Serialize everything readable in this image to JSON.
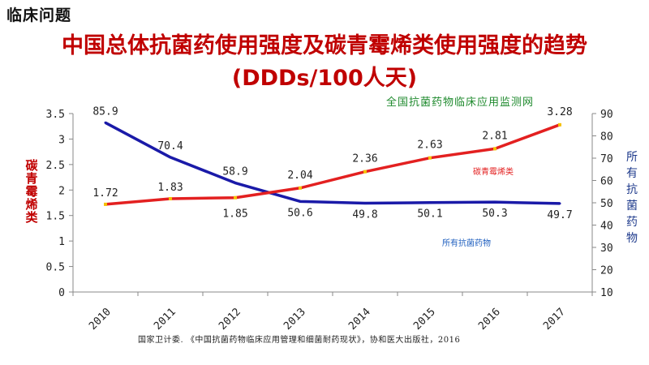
{
  "page": {
    "section_title": "临床问题",
    "title_line1": "中国总体抗菌药使用强度及碳青霉烯类使用强度的趋势",
    "title_line2": "(DDDs/100人天)",
    "source_label": "全国抗菌药物临床应用监测网",
    "reference": "国家卫计委. 《中国抗菌药物临床应用管理和细菌耐药现状》，协和医大出版社，2016"
  },
  "chart_data": {
    "type": "line",
    "categories": [
      "2010",
      "2011",
      "2012",
      "2013",
      "2014",
      "2015",
      "2016",
      "2017"
    ],
    "y_left": {
      "label": "碳青霉烯类",
      "range": [
        0,
        3.5
      ],
      "ticks": [
        "0",
        "0.5",
        "1",
        "1.5",
        "2",
        "2.5",
        "3",
        "3.5"
      ]
    },
    "y_right": {
      "label": "所有抗菌药物",
      "range": [
        10,
        90
      ],
      "ticks": [
        "10",
        "20",
        "30",
        "40",
        "50",
        "60",
        "70",
        "80",
        "90"
      ]
    },
    "grid": false,
    "series": [
      {
        "name": "碳青霉烯类",
        "axis": "left",
        "color": "#e32020",
        "values": [
          1.72,
          1.83,
          1.85,
          2.04,
          2.36,
          2.63,
          2.81,
          3.28
        ],
        "labels": [
          "1.72",
          "1.83",
          "1.85",
          "2.04",
          "2.36",
          "2.63",
          "2.81",
          "3.28"
        ]
      },
      {
        "name": "所有抗菌药物",
        "axis": "right",
        "color": "#1a1aa8",
        "values": [
          85.9,
          70.4,
          58.9,
          50.6,
          49.8,
          50.1,
          50.3,
          49.7
        ],
        "labels": [
          "85.9",
          "70.4",
          "58.9",
          "50.6",
          "49.8",
          "50.1",
          "50.3",
          "49.7"
        ]
      }
    ]
  }
}
